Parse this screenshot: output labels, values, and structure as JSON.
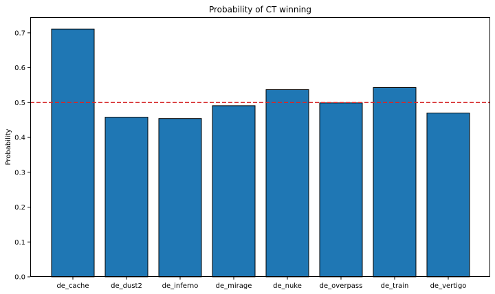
{
  "chart_data": {
    "type": "bar",
    "title": "Probability of CT winning",
    "xlabel": "",
    "ylabel": "Probability",
    "categories": [
      "de_cache",
      "de_dust2",
      "de_inferno",
      "de_mirage",
      "de_nuke",
      "de_overpass",
      "de_train",
      "de_vertigo"
    ],
    "values": [
      0.711,
      0.458,
      0.454,
      0.491,
      0.537,
      0.499,
      0.543,
      0.47
    ],
    "ylim": [
      0,
      0.745
    ],
    "yticks": [
      "0.0",
      "0.1",
      "0.2",
      "0.3",
      "0.4",
      "0.5",
      "0.6",
      "0.7"
    ],
    "reference_line": {
      "y": 0.5,
      "style": "dashed",
      "color": "#d62728"
    },
    "bar_color": "#1f77b4",
    "bar_edge_color": "#000000",
    "grid": false,
    "legend": "none"
  }
}
